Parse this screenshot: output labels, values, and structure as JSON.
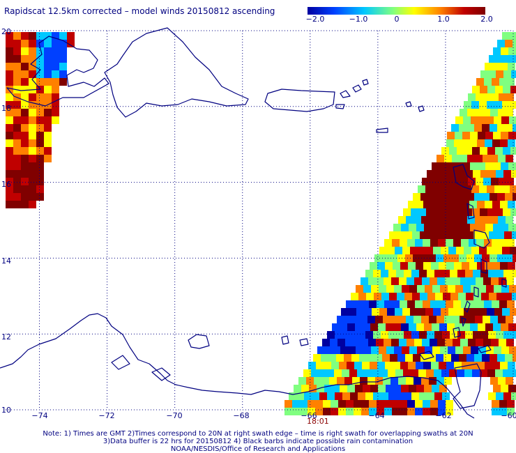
{
  "title": "Rapidscat 12.5km corrected – model winds 20150812 ascending",
  "colorbar": {
    "ticks": [
      "−2.0",
      "−1.0",
      "0",
      "1.0",
      "2.0"
    ],
    "colors": [
      "#0000a0",
      "#0040ff",
      "#00c8ff",
      "#80ff80",
      "#ffff00",
      "#ff8000",
      "#c00000",
      "#800000"
    ]
  },
  "map": {
    "lon_labels": [
      "−74",
      "−72",
      "−70",
      "−68",
      "−66",
      "−64",
      "−62",
      "−60"
    ],
    "lat_labels": [
      "20",
      "18",
      "16",
      "14",
      "12",
      "10"
    ],
    "extent": {
      "lon_min": -75,
      "lon_max": -60,
      "lat_min": 10,
      "lat_max": 20
    },
    "grid_style": "dotted",
    "coast_color": "#000080"
  },
  "swath_time": "18:01",
  "notes": [
    "Note: 1) Times are GMT 2)Times correspond to 20N at right swath edge – time is right swath for overlapping swaths at 20N",
    "3)Data buffer is 22 hrs for 20150812 4) Black barbs indicate possible rain contamination",
    "NOAA/NESDIS/Office of Research and Applications"
  ]
}
